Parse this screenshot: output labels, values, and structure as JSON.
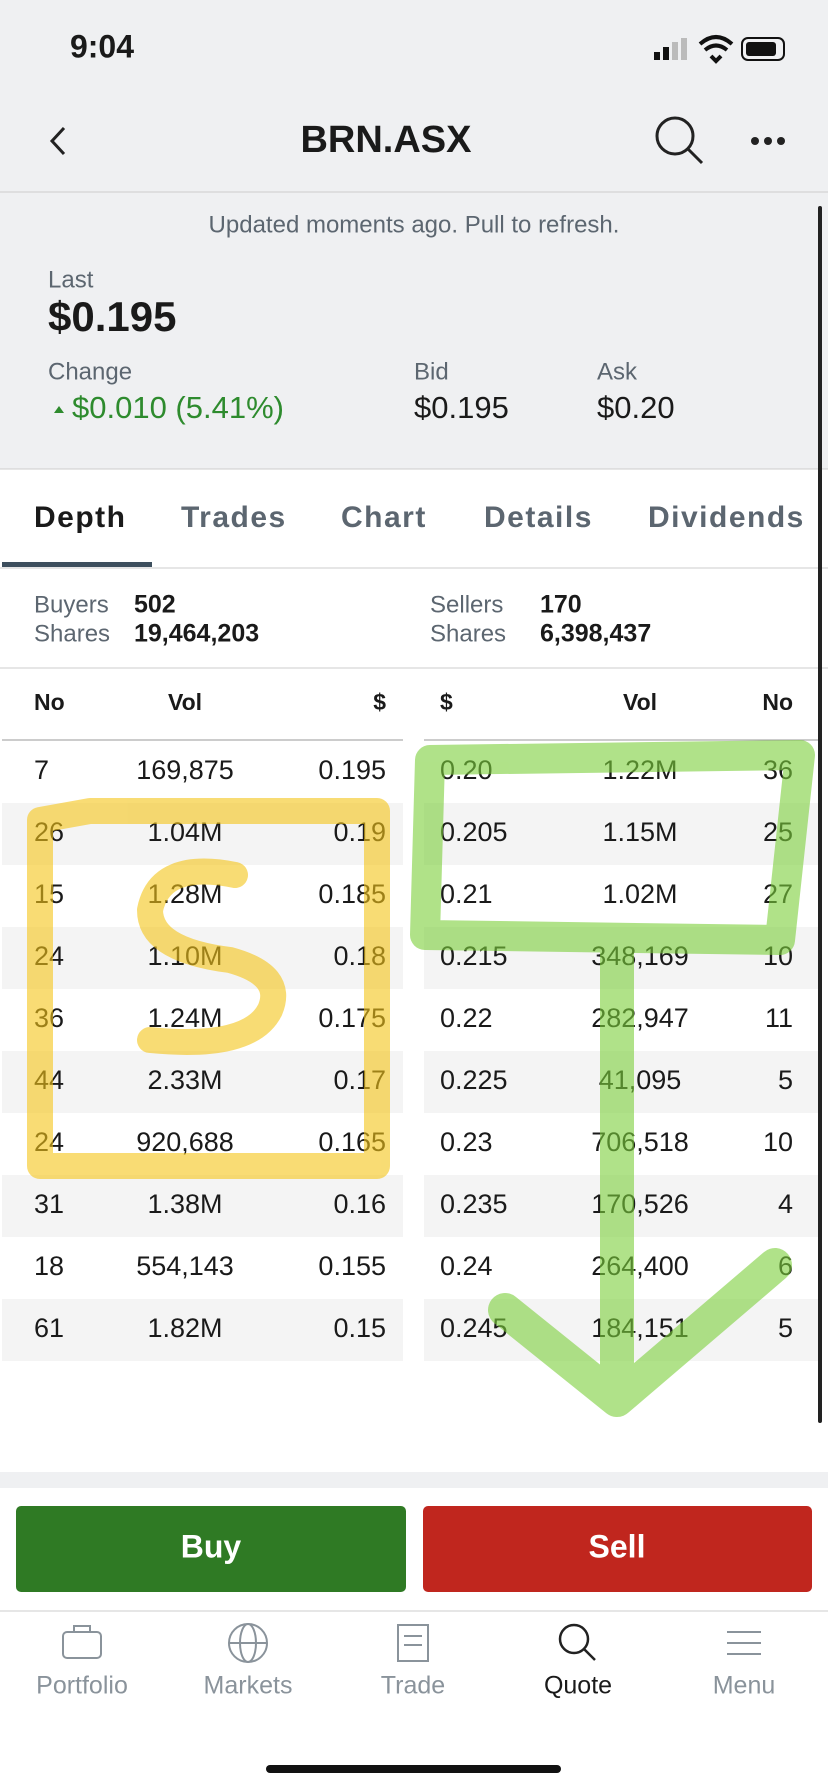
{
  "status": {
    "time": "9:04"
  },
  "header": {
    "title": "BRN.ASX"
  },
  "quote": {
    "updated": "Updated moments ago. Pull to refresh.",
    "last_label": "Last",
    "last": "$0.195",
    "change_label": "Change",
    "change": "$0.010 (5.41%)",
    "bid_label": "Bid",
    "bid": "$0.195",
    "ask_label": "Ask",
    "ask": "$0.20"
  },
  "tabs": [
    "Depth",
    "Trades",
    "Chart",
    "Details",
    "Dividends"
  ],
  "summary": {
    "buyers_label": "Buyers",
    "buyers": "502",
    "buyer_shares_label": "Shares",
    "buyer_shares": "19,464,203",
    "sellers_label": "Sellers",
    "sellers": "170",
    "seller_shares_label": "Shares",
    "seller_shares": "6,398,437"
  },
  "table": {
    "buy_headers": [
      "No",
      "Vol",
      "$"
    ],
    "sell_headers": [
      "$",
      "Vol",
      "No"
    ],
    "buy_rows": [
      [
        "7",
        "169,875",
        "0.195"
      ],
      [
        "26",
        "1.04M",
        "0.19"
      ],
      [
        "15",
        "1.28M",
        "0.185"
      ],
      [
        "24",
        "1.10M",
        "0.18"
      ],
      [
        "36",
        "1.24M",
        "0.175"
      ],
      [
        "44",
        "2.33M",
        "0.17"
      ],
      [
        "24",
        "920,688",
        "0.165"
      ],
      [
        "31",
        "1.38M",
        "0.16"
      ],
      [
        "18",
        "554,143",
        "0.155"
      ],
      [
        "61",
        "1.82M",
        "0.15"
      ]
    ],
    "sell_rows": [
      [
        "0.20",
        "1.22M",
        "36"
      ],
      [
        "0.205",
        "1.15M",
        "25"
      ],
      [
        "0.21",
        "1.02M",
        "27"
      ],
      [
        "0.215",
        "348,169",
        "10"
      ],
      [
        "0.22",
        "282,947",
        "11"
      ],
      [
        "0.225",
        "41,095",
        "5"
      ],
      [
        "0.23",
        "706,518",
        "10"
      ],
      [
        "0.235",
        "170,526",
        "4"
      ],
      [
        "0.24",
        "264,400",
        "6"
      ],
      [
        "0.245",
        "184,151",
        "5"
      ]
    ]
  },
  "buttons": {
    "buy": "Buy",
    "sell": "Sell"
  },
  "nav": [
    "Portfolio",
    "Markets",
    "Trade",
    "Quote",
    "Menu"
  ]
}
